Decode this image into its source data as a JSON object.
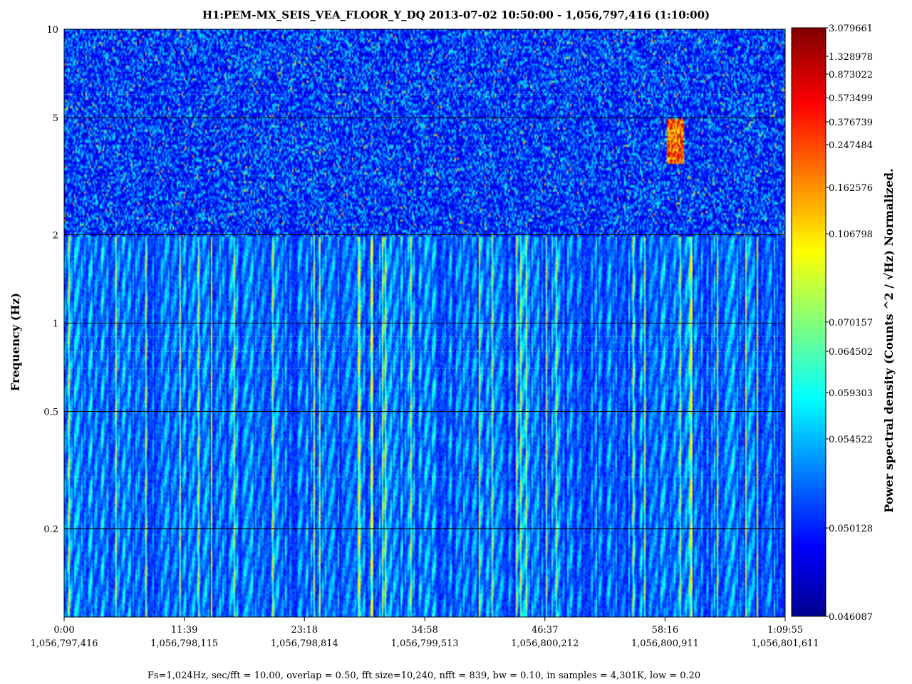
{
  "chart_data": {
    "type": "heatmap",
    "title": "H1:PEM-MX_SEIS_VEA_FLOOR_Y_DQ 2013-07-02 10:50:00 - 1,056,797,416 (1:10:00)",
    "ylabel": "Frequency (Hz)",
    "colorbar_label": "Power spectral density (Counts ^2 / √Hz) Normalized.",
    "footer": "Fs=1,024Hz, sec/fft = 10.00, overlap = 0.50, fft size=10,240, nfft = 839, bw = 0.10, in samples = 4,301K, low = 0.20",
    "y_scale": "log",
    "ylim": [
      0.1,
      10
    ],
    "xlim_seconds": [
      0,
      4195
    ],
    "y_ticks": [
      {
        "value": 10,
        "label": "10"
      },
      {
        "value": 5,
        "label": "5"
      },
      {
        "value": 2,
        "label": "2"
      },
      {
        "value": 1,
        "label": "1"
      },
      {
        "value": 0.5,
        "label": "0.5"
      },
      {
        "value": 0.2,
        "label": "0.2"
      }
    ],
    "x_ticks": [
      {
        "seconds": 0,
        "time": "0:00",
        "gps": "1,056,797,416"
      },
      {
        "seconds": 699,
        "time": "11:39",
        "gps": "1,056,798,115"
      },
      {
        "seconds": 1398,
        "time": "23:18",
        "gps": "1,056,798,814"
      },
      {
        "seconds": 2098,
        "time": "34:58",
        "gps": "1,056,799,513"
      },
      {
        "seconds": 2797,
        "time": "46:37",
        "gps": "1,056,800,212"
      },
      {
        "seconds": 3496,
        "time": "58:16",
        "gps": "1,056,800,911"
      },
      {
        "seconds": 4195,
        "time": "1:09:55",
        "gps": "1,056,801,611"
      }
    ],
    "colorbar": {
      "ticks": [
        "3.079661",
        "1.328978",
        "0.873022",
        "0.573499",
        "0.376739",
        "0.247484",
        "0.162576",
        "0.106798",
        "0.070157",
        "0.064502",
        "0.059303",
        "0.054522",
        "0.050128",
        "0.046087"
      ],
      "colormap": "jet",
      "colors": [
        "#00008f",
        "#0000ff",
        "#0080ff",
        "#00ffff",
        "#80ff80",
        "#ffff00",
        "#ff8000",
        "#ff0000",
        "#800000"
      ]
    },
    "hotspot": {
      "t_seconds": [
        3500,
        3600
      ],
      "f_hz": [
        3.5,
        5.0
      ],
      "level": "high"
    }
  }
}
